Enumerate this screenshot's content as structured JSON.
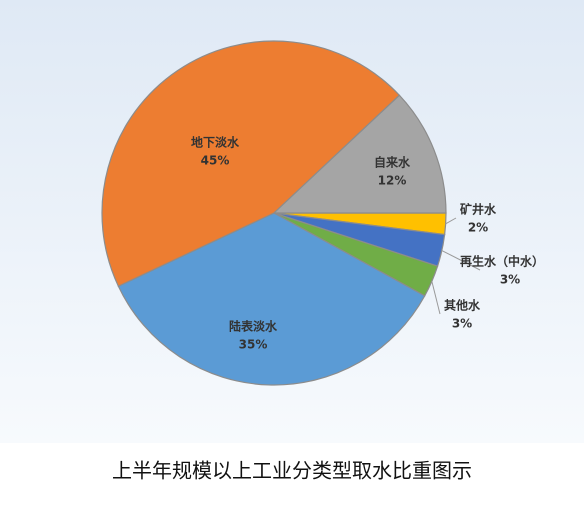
{
  "chart_data": {
    "type": "pie",
    "title": "上半年规模以上工业分类型取水比重图示",
    "categories": [
      "矿井水",
      "再生水（中水）",
      "其他水",
      "陆表淡水",
      "地下淡水",
      "自来水"
    ],
    "values": [
      2,
      3,
      3,
      35,
      45,
      12
    ],
    "value_labels": [
      "2%",
      "3%",
      "3%",
      "35%",
      "45%",
      "12%"
    ],
    "colors": [
      "#FFC000",
      "#4472C4",
      "#70AD47",
      "#5B9BD5",
      "#ED7D31",
      "#A5A5A5"
    ]
  }
}
